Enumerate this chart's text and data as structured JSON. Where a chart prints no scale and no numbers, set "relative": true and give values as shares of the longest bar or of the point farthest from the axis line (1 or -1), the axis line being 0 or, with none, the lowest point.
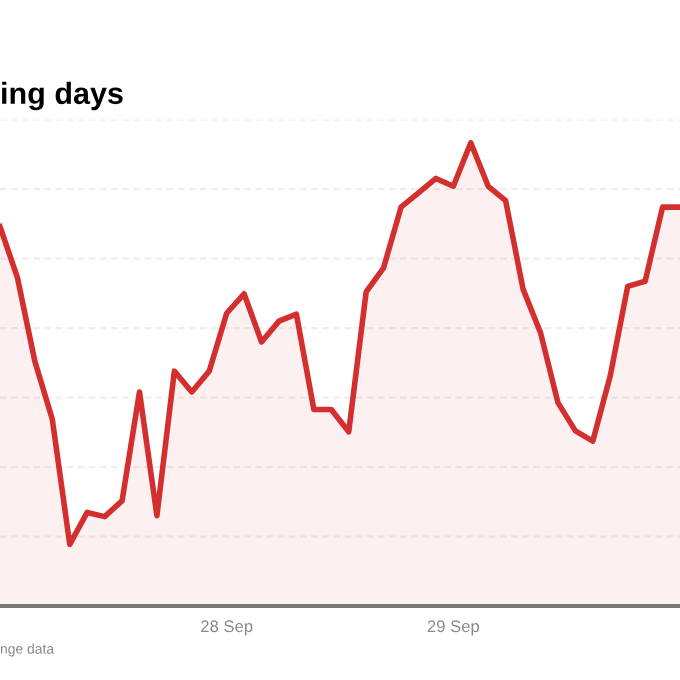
{
  "chart_data": {
    "type": "area",
    "title": "ing days",
    "relative": true,
    "grid": "y",
    "categories": [
      null,
      null,
      null,
      null,
      null,
      null,
      null,
      null,
      null,
      null,
      null,
      null,
      null,
      "28 Sep",
      null,
      null,
      null,
      null,
      null,
      null,
      null,
      null,
      null,
      null,
      null,
      null,
      "29 Sep",
      null,
      null,
      null,
      null,
      null,
      null,
      null,
      null,
      null,
      null,
      null,
      null,
      null
    ],
    "series": [
      {
        "color": "#d32f2f",
        "values": [
          0.819,
          0.709,
          0.528,
          0.403,
          0.133,
          0.202,
          0.193,
          0.227,
          0.462,
          0.195,
          0.507,
          0.462,
          0.507,
          0.632,
          0.674,
          0.57,
          0.615,
          0.63,
          0.424,
          0.424,
          0.376,
          0.678,
          0.73,
          0.861,
          0.892,
          0.923,
          0.906,
          1,
          0.906,
          0.875,
          0.684,
          0.59,
          0.439,
          0.378,
          0.356,
          0.497,
          0.69,
          0.701,
          0.861,
          0.861
        ]
      }
    ],
    "annotations": [
      "nge data"
    ]
  }
}
